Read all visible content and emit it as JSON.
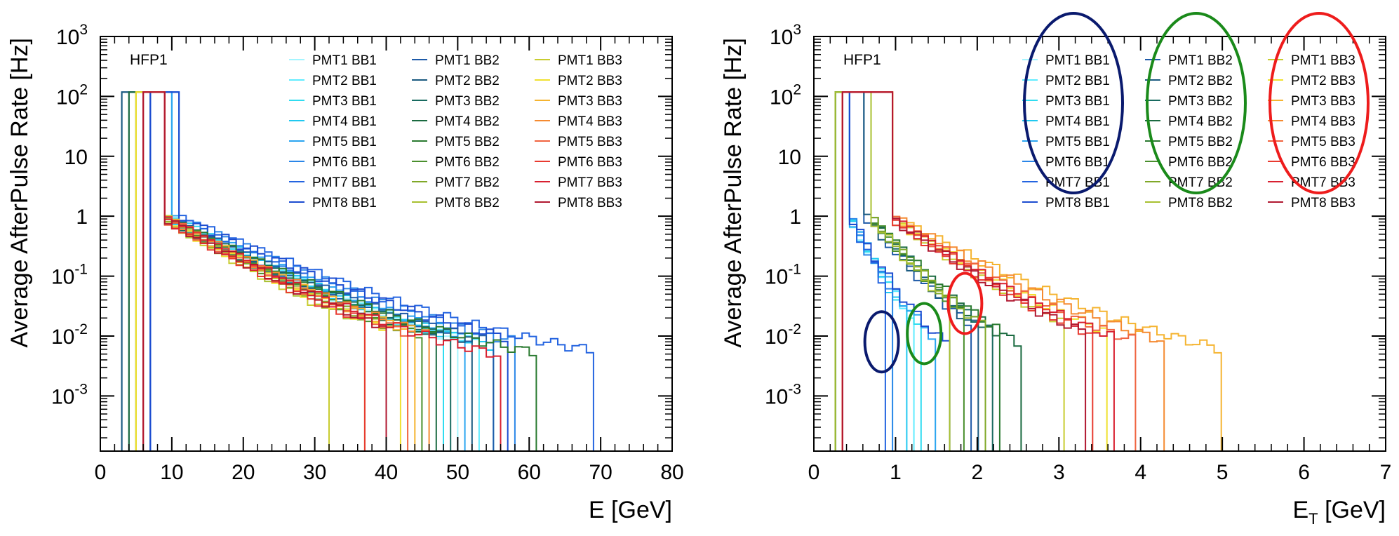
{
  "chart_data": [
    {
      "type": "line",
      "step": true,
      "panel_label": "HFP1",
      "xlabel": "E [GeV]",
      "ylabel": "Average AfterPulse Rate [Hz]",
      "xlim": [
        0,
        80
      ],
      "ylim": [
        0.00012,
        1000
      ],
      "yscale": "log",
      "grid": false,
      "legend_position": "top-right",
      "x_ticks": [
        "0",
        "10",
        "20",
        "30",
        "40",
        "50",
        "60",
        "70",
        "80"
      ],
      "y_ticks": [
        {
          "base": "10",
          "exp": "-3",
          "value": 0.001
        },
        {
          "base": "10",
          "exp": "-2",
          "value": 0.01
        },
        {
          "base": "10",
          "exp": "-1",
          "value": 0.1
        },
        {
          "base": "1",
          "exp": "",
          "value": 1
        },
        {
          "base": "10",
          "exp": "",
          "value": 10
        },
        {
          "base": "10",
          "exp": "2",
          "value": 100
        },
        {
          "base": "10",
          "exp": "3",
          "value": 1000
        }
      ],
      "series": [
        {
          "name": "PMT1 BB1",
          "color": "#a5f5ff",
          "start": 5.5,
          "cut": 9,
          "tau": 7.0,
          "end": 50
        },
        {
          "name": "PMT2 BB1",
          "color": "#60ecff",
          "start": 6.0,
          "cut": 9,
          "tau": 7.2,
          "end": 53
        },
        {
          "name": "PMT3 BB1",
          "color": "#30dcf0",
          "start": 6.5,
          "cut": 10,
          "tau": 6.8,
          "end": 48
        },
        {
          "name": "PMT4 BB1",
          "color": "#20c8f0",
          "start": 6.5,
          "cut": 10,
          "tau": 7.0,
          "end": 55
        },
        {
          "name": "PMT5 BB1",
          "color": "#2aa5f0",
          "start": 7.0,
          "cut": 10,
          "tau": 7.4,
          "end": 51
        },
        {
          "name": "PMT6 BB1",
          "color": "#2b86e8",
          "start": 7.0,
          "cut": 11,
          "tau": 7.8,
          "end": 58
        },
        {
          "name": "PMT7 BB1",
          "color": "#2464e0",
          "start": 7.0,
          "cut": 11,
          "tau": 8.5,
          "end": 69
        },
        {
          "name": "PMT8 BB1",
          "color": "#1c4cd0",
          "start": 7.0,
          "cut": 11,
          "tau": 8.0,
          "end": 57
        },
        {
          "name": "PMT1 BB2",
          "color": "#1e5aa8",
          "start": 3.0,
          "cut": 9,
          "tau": 7.5,
          "end": 55
        },
        {
          "name": "PMT2 BB2",
          "color": "#1a5a80",
          "start": 3.5,
          "cut": 9,
          "tau": 7.2,
          "end": 52
        },
        {
          "name": "PMT3 BB2",
          "color": "#186a60",
          "start": 4.0,
          "cut": 9,
          "tau": 7.0,
          "end": 49
        },
        {
          "name": "PMT4 BB2",
          "color": "#1a6a40",
          "start": 4.5,
          "cut": 9,
          "tau": 6.8,
          "end": 47
        },
        {
          "name": "PMT5 BB2",
          "color": "#2a7a30",
          "start": 5.0,
          "cut": 9,
          "tau": 7.4,
          "end": 61
        },
        {
          "name": "PMT6 BB2",
          "color": "#4a8f2e",
          "start": 5.0,
          "cut": 9,
          "tau": 6.5,
          "end": 45
        },
        {
          "name": "PMT7 BB2",
          "color": "#80a828",
          "start": 5.5,
          "cut": 9,
          "tau": 6.3,
          "end": 40
        },
        {
          "name": "PMT8 BB2",
          "color": "#a8c030",
          "start": 5.5,
          "cut": 9,
          "tau": 6.0,
          "end": 37
        },
        {
          "name": "PMT1 BB3",
          "color": "#c8cc30",
          "start": 5.5,
          "cut": 9,
          "tau": 5.8,
          "end": 32
        },
        {
          "name": "PMT2 BB3",
          "color": "#f0e030",
          "start": 5.5,
          "cut": 9,
          "tau": 6.2,
          "end": 42
        },
        {
          "name": "PMT3 BB3",
          "color": "#f5b430",
          "start": 6.0,
          "cut": 9,
          "tau": 6.6,
          "end": 44
        },
        {
          "name": "PMT4 BB3",
          "color": "#f58a30",
          "start": 6.0,
          "cut": 9,
          "tau": 6.7,
          "end": 46
        },
        {
          "name": "PMT5 BB3",
          "color": "#f06440",
          "start": 6.0,
          "cut": 9,
          "tau": 6.3,
          "end": 43
        },
        {
          "name": "PMT6 BB3",
          "color": "#e83a30",
          "start": 6.0,
          "cut": 9,
          "tau": 6.0,
          "end": 37
        },
        {
          "name": "PMT7 BB3",
          "color": "#d82030",
          "start": 6.0,
          "cut": 9,
          "tau": 6.5,
          "end": 56
        },
        {
          "name": "PMT8 BB3",
          "color": "#b01830",
          "start": 6.0,
          "cut": 9,
          "tau": 6.2,
          "end": 40
        }
      ]
    },
    {
      "type": "line",
      "step": true,
      "panel_label": "HFP1",
      "xlabel": "E_T [GeV]",
      "xlabel_main": "E",
      "xlabel_sub": "T",
      "xlabel_rest": " [GeV]",
      "ylabel": "Average AfterPulse Rate [Hz]",
      "xlim": [
        0,
        7
      ],
      "ylim": [
        0.00012,
        1000
      ],
      "yscale": "log",
      "grid": false,
      "legend_position": "top-right",
      "x_ticks": [
        "0",
        "1",
        "2",
        "3",
        "4",
        "5",
        "6",
        "7"
      ],
      "y_ticks": [
        {
          "base": "10",
          "exp": "-3",
          "value": 0.001
        },
        {
          "base": "10",
          "exp": "-2",
          "value": 0.01
        },
        {
          "base": "10",
          "exp": "-1",
          "value": 0.1
        },
        {
          "base": "1",
          "exp": "",
          "value": 1
        },
        {
          "base": "10",
          "exp": "",
          "value": 10
        },
        {
          "base": "10",
          "exp": "2",
          "value": 100
        },
        {
          "base": "10",
          "exp": "3",
          "value": 1000
        }
      ],
      "series": [
        {
          "name": "PMT1 BB1",
          "color": "#a5f5ff",
          "start": 0.25,
          "cut": 0.45,
          "tau": 0.16,
          "end": 1.0
        },
        {
          "name": "PMT2 BB1",
          "color": "#60ecff",
          "start": 0.25,
          "cut": 0.45,
          "tau": 0.17,
          "end": 1.2
        },
        {
          "name": "PMT3 BB1",
          "color": "#30dcf0",
          "start": 0.25,
          "cut": 0.45,
          "tau": 0.17,
          "end": 1.3
        },
        {
          "name": "PMT4 BB1",
          "color": "#20c8f0",
          "start": 0.25,
          "cut": 0.45,
          "tau": 0.16,
          "end": 1.1
        },
        {
          "name": "PMT5 BB1",
          "color": "#2aa5f0",
          "start": 0.25,
          "cut": 0.45,
          "tau": 0.18,
          "end": 1.5
        },
        {
          "name": "PMT6 BB1",
          "color": "#2b86e8",
          "start": 0.25,
          "cut": 0.45,
          "tau": 0.16,
          "end": 1.0
        },
        {
          "name": "PMT7 BB1",
          "color": "#2464e0",
          "start": 0.25,
          "cut": 0.45,
          "tau": 0.15,
          "end": 0.9
        },
        {
          "name": "PMT8 BB1",
          "color": "#1c4cd0",
          "start": 0.25,
          "cut": 0.45,
          "tau": 0.19,
          "end": 1.65
        },
        {
          "name": "PMT1 BB2",
          "color": "#1e5aa8",
          "start": 0.3,
          "cut": 0.65,
          "tau": 0.26,
          "end": 1.9
        },
        {
          "name": "PMT2 BB2",
          "color": "#1a5a80",
          "start": 0.3,
          "cut": 0.65,
          "tau": 0.27,
          "end": 2.0
        },
        {
          "name": "PMT3 BB2",
          "color": "#186a60",
          "start": 0.3,
          "cut": 0.7,
          "tau": 0.28,
          "end": 2.2
        },
        {
          "name": "PMT4 BB2",
          "color": "#1a6a40",
          "start": 0.3,
          "cut": 0.7,
          "tau": 0.29,
          "end": 2.5
        },
        {
          "name": "PMT5 BB2",
          "color": "#2a7a30",
          "start": 0.3,
          "cut": 0.7,
          "tau": 0.3,
          "end": 2.3
        },
        {
          "name": "PMT6 BB2",
          "color": "#4a8f2e",
          "start": 0.3,
          "cut": 0.7,
          "tau": 0.27,
          "end": 1.8
        },
        {
          "name": "PMT7 BB2",
          "color": "#80a828",
          "start": 0.3,
          "cut": 0.7,
          "tau": 0.28,
          "end": 2.1
        },
        {
          "name": "PMT8 BB2",
          "color": "#a8c030",
          "start": 0.3,
          "cut": 0.7,
          "tau": 0.26,
          "end": 1.7
        },
        {
          "name": "PMT1 BB3",
          "color": "#c8cc30",
          "start": 0.35,
          "cut": 0.95,
          "tau": 0.45,
          "end": 3.1
        },
        {
          "name": "PMT2 BB3",
          "color": "#f0e030",
          "start": 0.35,
          "cut": 0.95,
          "tau": 0.5,
          "end": 3.6
        },
        {
          "name": "PMT3 BB3",
          "color": "#f5b430",
          "start": 0.35,
          "cut": 1.0,
          "tau": 0.6,
          "end": 5.0
        },
        {
          "name": "PMT4 BB3",
          "color": "#f58a30",
          "start": 0.35,
          "cut": 1.0,
          "tau": 0.55,
          "end": 4.3
        },
        {
          "name": "PMT5 BB3",
          "color": "#f06440",
          "start": 0.35,
          "cut": 0.95,
          "tau": 0.5,
          "end": 3.9
        },
        {
          "name": "PMT6 BB3",
          "color": "#e83a30",
          "start": 0.35,
          "cut": 0.95,
          "tau": 0.45,
          "end": 3.4
        },
        {
          "name": "PMT7 BB3",
          "color": "#d82030",
          "start": 0.35,
          "cut": 0.95,
          "tau": 0.48,
          "end": 3.7
        },
        {
          "name": "PMT8 BB3",
          "color": "#b01830",
          "start": 0.35,
          "cut": 0.95,
          "tau": 0.44,
          "end": 3.3
        }
      ],
      "annotations": [
        {
          "kind": "ellipse",
          "color": "#0a1a6e",
          "encloses": "PMT1 BB1 – PMT8 BB1 legend column"
        },
        {
          "kind": "ellipse",
          "color": "#1a8a1a",
          "encloses": "PMT1 BB2 – PMT8 BB2 legend column"
        },
        {
          "kind": "ellipse",
          "color": "#ee1c1c",
          "encloses": "PMT1 BB3 – PMT8 BB3 legend column"
        },
        {
          "kind": "ellipse",
          "color": "#0a1a6e",
          "x": 0.83,
          "y": 0.008
        },
        {
          "kind": "ellipse",
          "color": "#1a8a1a",
          "x": 1.35,
          "y": 0.011
        },
        {
          "kind": "ellipse",
          "color": "#ee1c1c",
          "x": 1.85,
          "y": 0.035
        }
      ]
    }
  ]
}
